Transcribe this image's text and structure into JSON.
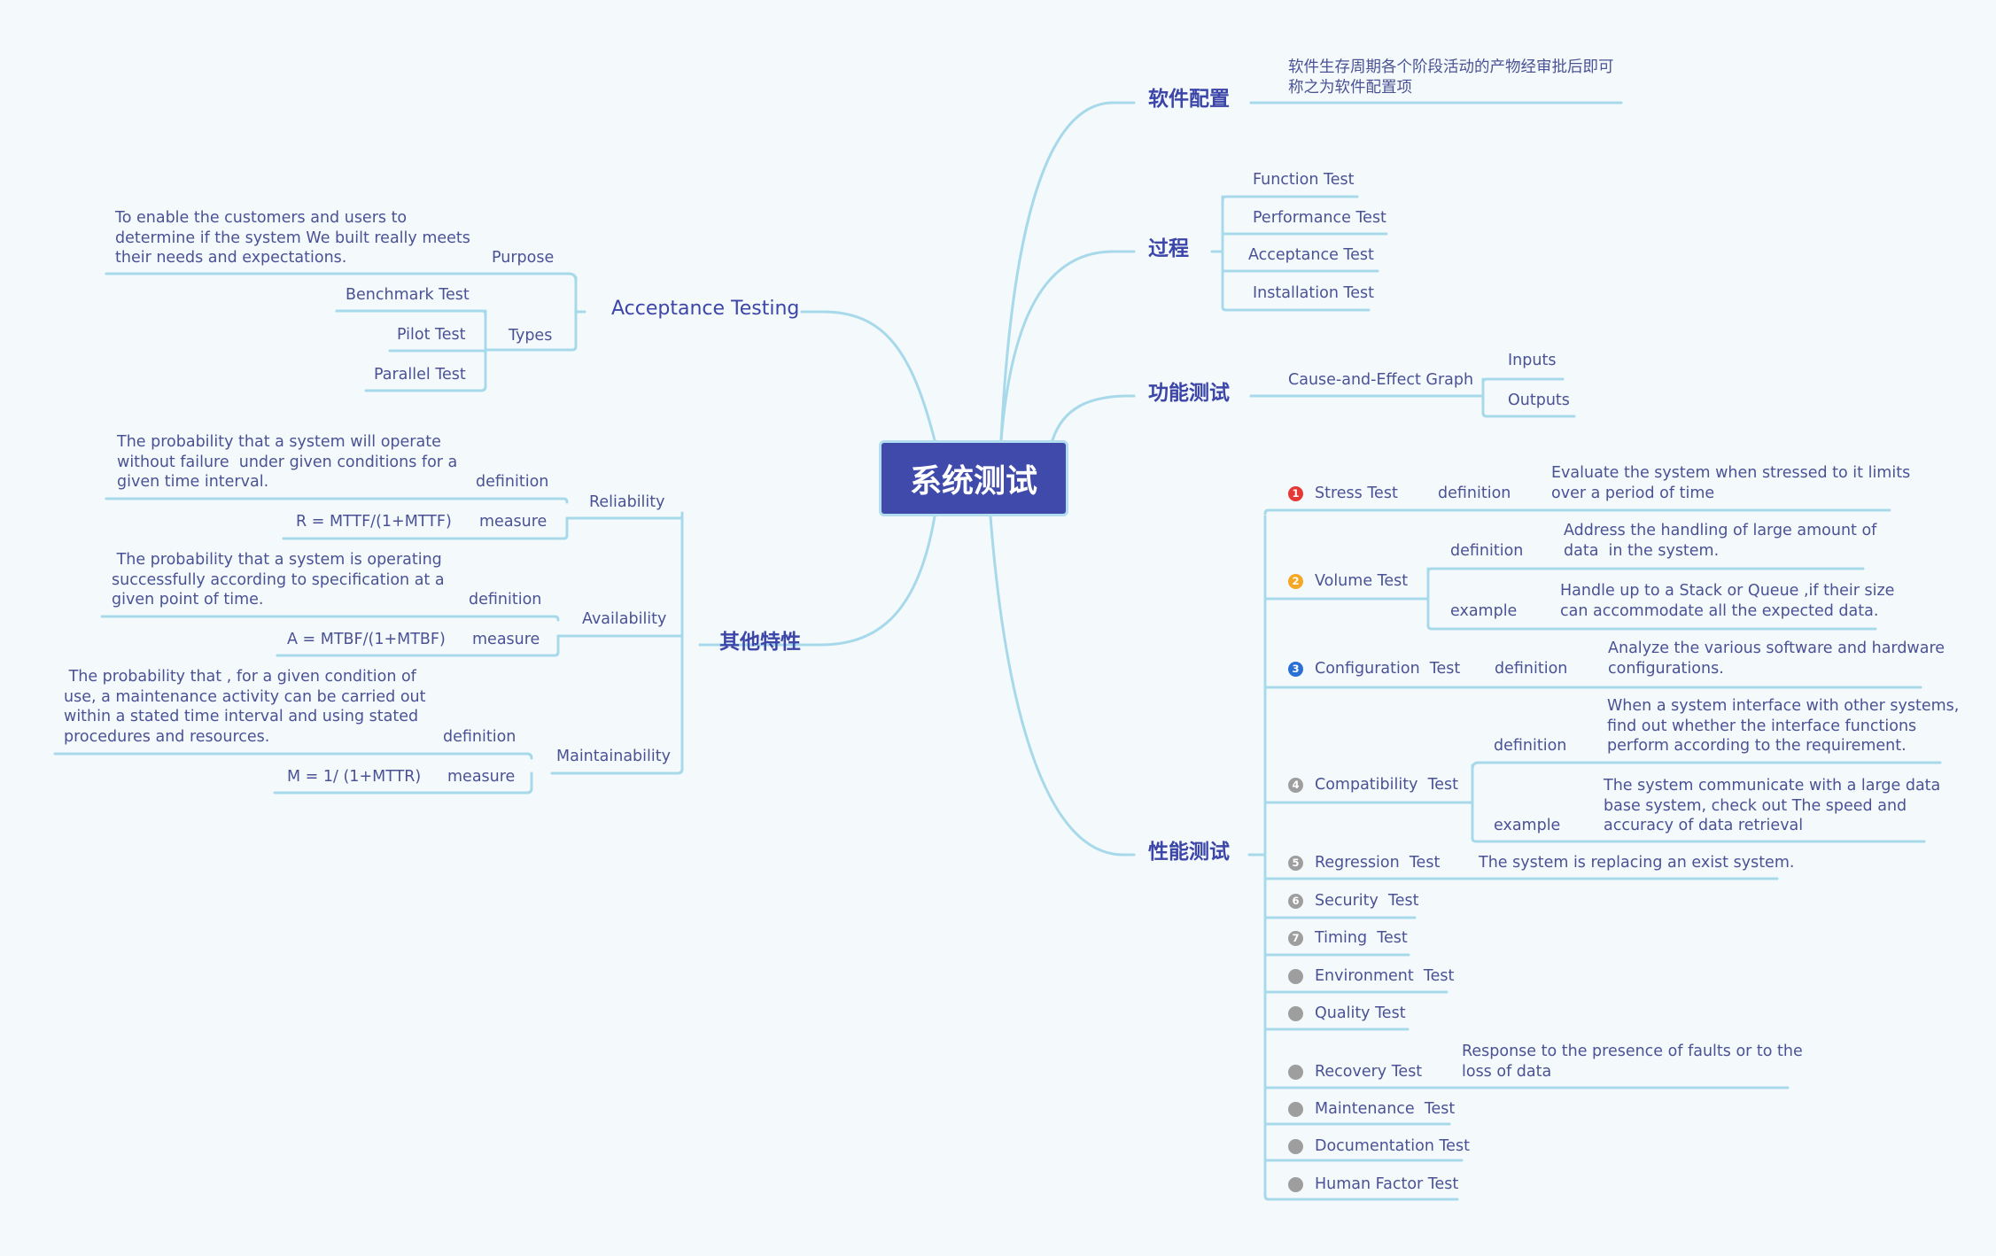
{
  "colors": {
    "line": "#a7d9ea",
    "root": "#3f4aab",
    "branch": "#3c45a8",
    "text": "#4a5295"
  },
  "root": "系统测试",
  "acceptance": {
    "title": "Acceptance Testing",
    "purpose_label": "Purpose",
    "purpose_text": "To enable the customers and users to\ndetermine if the system We built really meets\ntheir needs and expectations.",
    "types_label": "Types",
    "types": [
      "Benchmark Test",
      "Pilot Test",
      "Parallel Test"
    ]
  },
  "other": {
    "title": "其他特性",
    "reliability": {
      "label": "Reliability",
      "def_label": "definition",
      "def_text": "The probability that a system will operate\nwithout failure  under given conditions for a\ngiven time interval.",
      "measure_label": "measure",
      "formula": "R = MTTF/(1+MTTF)"
    },
    "availability": {
      "label": "Availability",
      "def_label": "definition",
      "def_text": " The probability that a system is operating\nsuccessfully according to specification at a\ngiven point of time.",
      "measure_label": "measure",
      "formula": "A = MTBF/(1+MTBF)"
    },
    "maintainability": {
      "label": "Maintainability",
      "def_label": "definition",
      "def_text": " The probability that , for a given condition of\nuse, a maintenance activity can be carried out\nwithin a stated time interval and using stated\nprocedures and resources.",
      "measure_label": "measure",
      "formula": "M = 1/ (1+MTTR)"
    }
  },
  "config": {
    "title": "软件配置",
    "text": "软件生存周期各个阶段活动的产物经审批后即可\n称之为软件配置项"
  },
  "process": {
    "title": "过程",
    "items": [
      "Function Test",
      "Performance Test",
      "Acceptance Test",
      "Installation Test"
    ]
  },
  "functional": {
    "title": "功能测试",
    "graph": "Cause-and-Effect Graph",
    "inputs": "Inputs",
    "outputs": "Outputs"
  },
  "performance": {
    "title": "性能测试",
    "markers": [
      "1",
      "2",
      "3",
      "4",
      "5",
      "6",
      "7"
    ],
    "marker_colors": {
      "1": "#e53935",
      "2": "#f5a623",
      "3": "#2a6fd6",
      "gray": "#9e9e9e"
    },
    "stress": {
      "label": "Stress Test",
      "def_label": "definition",
      "def_text": "Evaluate the system when stressed to it limits\nover a period of time"
    },
    "volume": {
      "label": "Volume Test",
      "def_label": "definition",
      "def_text": "Address the handling of large amount of\ndata  in the system.",
      "ex_label": "example",
      "ex_text": "Handle up to a Stack or Queue ,if their size\ncan accommodate all the expected data."
    },
    "configuration": {
      "label": "Configuration  Test",
      "def_label": "definition",
      "def_text": "Analyze the various software and hardware\nconfigurations."
    },
    "compatibility": {
      "label": "Compatibility  Test",
      "def_label": "definition",
      "def_text": "When a system interface with other systems,\nfind out whether the interface functions\nperform according to the requirement.",
      "ex_label": "example",
      "ex_text": "The system communicate with a large data\nbase system, check out The speed and\naccuracy of data retrieval"
    },
    "regression": {
      "label": "Regression  Test",
      "text": "The system is replacing an exist system."
    },
    "security": "Security  Test",
    "timing": "Timing  Test",
    "environment": "Environment  Test",
    "quality": "Quality Test",
    "recovery": {
      "label": "Recovery Test",
      "text": "Response to the presence of faults or to the\nloss of data"
    },
    "maintenance": "Maintenance  Test",
    "documentation": "Documentation Test",
    "human": "Human Factor Test"
  }
}
